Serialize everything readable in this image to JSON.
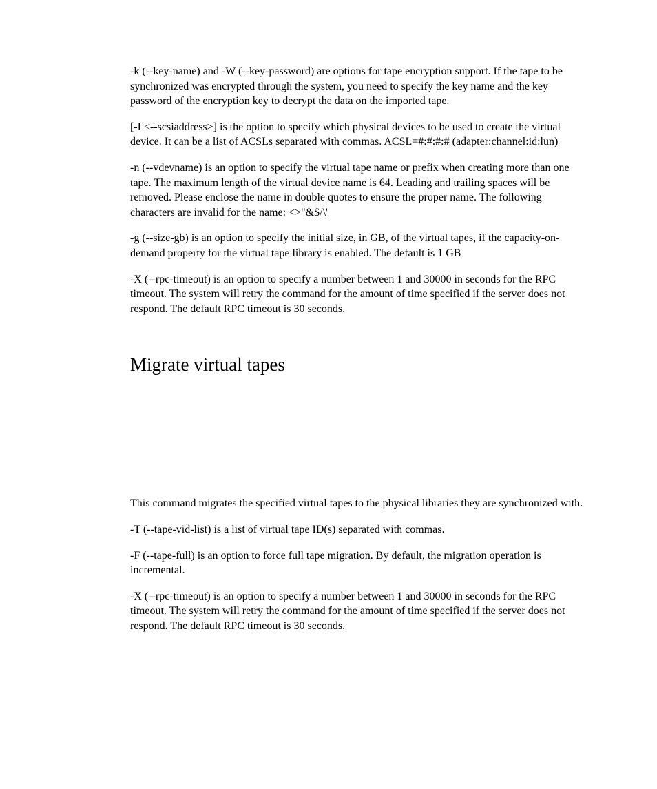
{
  "document": {
    "paragraphs": [
      "-k (--key-name) and -W (--key-password) are options for tape encryption support. If the tape to be synchronized was encrypted through the system, you need to specify the key name and the key password of the encryption key to decrypt the data on the imported tape.",
      "[-I <--scsiaddress>] is the option to specify which physical devices to be used to create the virtual device. It can be a list of ACSLs separated with commas. ACSL=#:#:#:# (adapter:channel:id:lun)",
      "-n (--vdevname) is an option to specify the virtual tape name or prefix when creating more than one tape. The maximum length of the virtual device name is 64. Leading and trailing spaces will be removed. Please enclose the name in double quotes to ensure the proper name. The following characters are invalid for the name: <>\"&$/\\'",
      "-g (--size-gb) is an option to specify the initial size, in GB, of the virtual tapes, if the capacity-on-demand property for the virtual tape library is enabled. The default is 1 GB",
      "-X (--rpc-timeout) is an option to specify a number between 1 and 30000 in seconds for the RPC timeout. The system will retry the command for the amount of time specified if the server does not respond. The default RPC timeout is 30 seconds."
    ],
    "heading": "Migrate virtual tapes",
    "paragraphs2": [
      "This command migrates the specified virtual tapes to the physical libraries they are synchronized with.",
      "-T (--tape-vid-list) is a list of virtual tape ID(s) separated with commas.",
      "-F (--tape-full) is an option to force full tape migration. By default, the migration operation is incremental.",
      "-X (--rpc-timeout) is an option to specify a number between 1 and 30000 in seconds for the RPC timeout. The system will retry the command for the amount of time specified if the server does not respond. The default RPC timeout is 30 seconds."
    ],
    "text_color": "#000000",
    "background_color": "#ffffff",
    "body_fontsize": 16,
    "heading_fontsize": 27
  }
}
